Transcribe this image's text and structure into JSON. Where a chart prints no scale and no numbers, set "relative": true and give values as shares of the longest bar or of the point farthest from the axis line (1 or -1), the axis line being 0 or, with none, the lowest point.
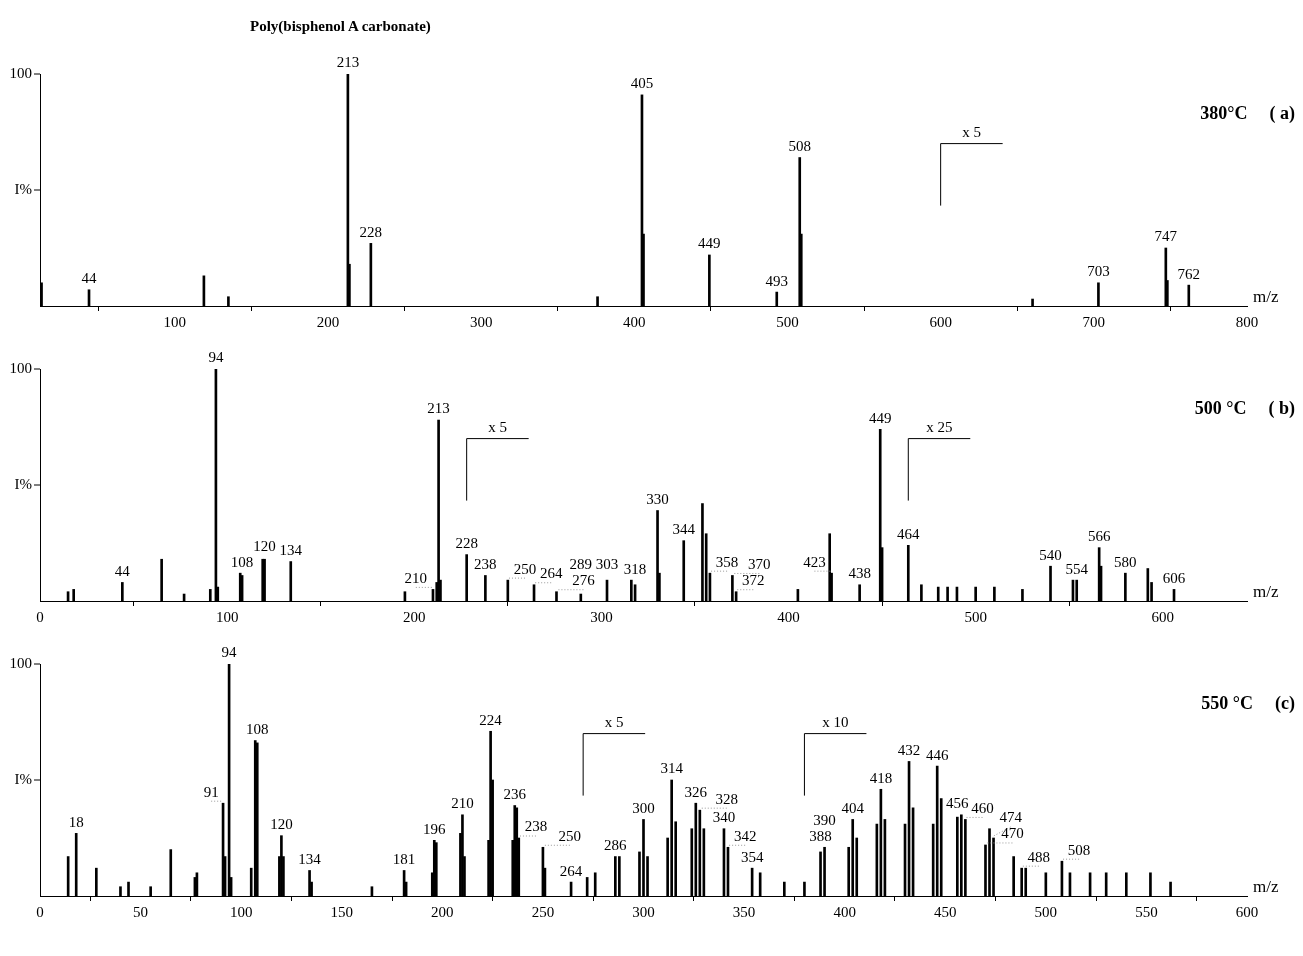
{
  "chart_data": [
    {
      "type": "bar",
      "title": "Poly(bisphenol A carbonate)",
      "xlabel": "m/z",
      "ylabel": "I%",
      "color": "#000000",
      "relative": true,
      "legend": false,
      "x": [
        13,
        44,
        119,
        135,
        213,
        214,
        228,
        376,
        405,
        406,
        449,
        493,
        508,
        509,
        660,
        703,
        747,
        748,
        762
      ],
      "values": [
        0.1,
        0.07,
        0.13,
        0.04,
        1,
        0.18,
        0.27,
        0.04,
        0.91,
        0.31,
        0.22,
        0.06,
        0.64,
        0.31,
        0.03,
        0.1,
        0.25,
        0.11,
        0.09
      ],
      "xlim": [
        12,
        800
      ],
      "xticks": [
        100,
        200,
        300,
        400,
        500,
        600,
        700,
        800
      ],
      "ref_lines": [
        {
          "axis": "x",
          "value": 600,
          "label": "x 5"
        }
      ],
      "annotations": [
        "100",
        "380°C",
        "( a)",
        {
          "text": "44",
          "x": 44,
          "y": 0.07
        },
        {
          "text": "213",
          "x": 213,
          "y": 1
        },
        {
          "text": "228",
          "x": 228,
          "y": 0.27
        },
        {
          "text": "405",
          "x": 405,
          "y": 0.91
        },
        {
          "text": "449",
          "x": 449,
          "y": 0.22
        },
        {
          "text": "493",
          "x": 493,
          "y": 0.06
        },
        {
          "text": "508",
          "x": 508,
          "y": 0.64
        },
        {
          "text": "703",
          "x": 703,
          "y": 0.1
        },
        {
          "text": "747",
          "x": 747,
          "y": 0.25
        },
        {
          "text": "762",
          "x": 762,
          "y": 0.09
        }
      ]
    },
    {
      "type": "bar",
      "xlabel": "m/z",
      "ylabel": "I%",
      "color": "#000000",
      "relative": true,
      "legend": false,
      "x": [
        15,
        18,
        44,
        65,
        77,
        91,
        94,
        95,
        107,
        108,
        119,
        120,
        134,
        195,
        210,
        212,
        213,
        214,
        228,
        238,
        250,
        264,
        276,
        289,
        303,
        316,
        318,
        330,
        331,
        344,
        354,
        356,
        358,
        370,
        372,
        405,
        422,
        423,
        438,
        449,
        450,
        464,
        471,
        480,
        485,
        490,
        500,
        510,
        525,
        540,
        552,
        554,
        566,
        567,
        580,
        592,
        594,
        606
      ],
      "values": [
        0.04,
        0.05,
        0.08,
        0.18,
        0.03,
        0.05,
        1,
        0.06,
        0.12,
        0.11,
        0.18,
        0.18,
        0.17,
        0.04,
        0.05,
        0.08,
        0.78,
        0.09,
        0.2,
        0.11,
        0.09,
        0.07,
        0.04,
        0.03,
        0.09,
        0.09,
        0.07,
        0.39,
        0.12,
        0.26,
        0.42,
        0.29,
        0.12,
        0.11,
        0.04,
        0.05,
        0.29,
        0.12,
        0.07,
        0.74,
        0.23,
        0.24,
        0.07,
        0.06,
        0.06,
        0.06,
        0.06,
        0.06,
        0.05,
        0.15,
        0.09,
        0.09,
        0.23,
        0.15,
        0.12,
        0.14,
        0.08,
        0.05
      ],
      "xlim": [
        0,
        645
      ],
      "xticks": [
        0,
        100,
        200,
        300,
        400,
        500,
        600
      ],
      "ref_lines": [
        {
          "axis": "x",
          "value": 228,
          "label": "x 5"
        },
        {
          "axis": "x",
          "value": 464,
          "label": "x 25"
        }
      ],
      "annotations": [
        "100",
        "500 °C",
        "( b)",
        {
          "text": "44",
          "x": 44,
          "y": 0.08
        },
        {
          "text": "94",
          "x": 94,
          "y": 1
        },
        {
          "text": "108",
          "x": 108,
          "y": 0.11
        },
        {
          "text": "120",
          "x": 120,
          "y": 0.18
        },
        {
          "text": "134",
          "x": 134,
          "y": 0.17
        },
        {
          "text": "210",
          "x": 210,
          "y": 0.05
        },
        {
          "text": "213",
          "x": 213,
          "y": 0.78
        },
        {
          "text": "228",
          "x": 228,
          "y": 0.2
        },
        {
          "text": "238",
          "x": 238,
          "y": 0.11
        },
        {
          "text": "250",
          "x": 250,
          "y": 0.09
        },
        {
          "text": "264",
          "x": 264,
          "y": 0.07
        },
        {
          "text": "276",
          "x": 276,
          "y": 0.04
        },
        {
          "text": "289",
          "x": 289,
          "y": 0.03
        },
        {
          "text": "303",
          "x": 303,
          "y": 0.09
        },
        {
          "text": "318",
          "x": 318,
          "y": 0.07
        },
        {
          "text": "330",
          "x": 330,
          "y": 0.39
        },
        {
          "text": "344",
          "x": 344,
          "y": 0.26
        },
        {
          "text": "358",
          "x": 358,
          "y": 0.12
        },
        {
          "text": "370",
          "x": 370,
          "y": 0.11
        },
        {
          "text": "372",
          "x": 372,
          "y": 0.04
        },
        {
          "text": "423",
          "x": 423,
          "y": 0.12
        },
        {
          "text": "438",
          "x": 438,
          "y": 0.07
        },
        {
          "text": "449",
          "x": 449,
          "y": 0.74
        },
        {
          "text": "464",
          "x": 464,
          "y": 0.24
        },
        {
          "text": "540",
          "x": 540,
          "y": 0.15
        },
        {
          "text": "554",
          "x": 554,
          "y": 0.09
        },
        {
          "text": "566",
          "x": 566,
          "y": 0.23
        },
        {
          "text": "580",
          "x": 580,
          "y": 0.12
        },
        {
          "text": "606",
          "x": 606,
          "y": 0.05
        }
      ]
    },
    {
      "type": "bar",
      "xlabel": "m/z",
      "ylabel": "I%",
      "color": "#000000",
      "relative": true,
      "legend": false,
      "x": [
        14,
        18,
        28,
        40,
        44,
        55,
        65,
        77,
        78,
        91,
        92,
        94,
        95,
        105,
        107,
        108,
        119,
        120,
        121,
        134,
        135,
        165,
        181,
        182,
        195,
        196,
        197,
        209,
        210,
        211,
        223,
        224,
        225,
        235,
        236,
        237,
        238,
        250,
        251,
        264,
        272,
        276,
        286,
        288,
        298,
        300,
        302,
        312,
        314,
        316,
        324,
        326,
        328,
        330,
        340,
        342,
        354,
        358,
        370,
        380,
        388,
        390,
        402,
        404,
        406,
        416,
        418,
        420,
        430,
        432,
        434,
        444,
        446,
        448,
        456,
        458,
        460,
        470,
        472,
        474,
        484,
        488,
        490,
        500,
        508,
        512,
        522,
        530,
        540,
        552,
        562
      ],
      "values": [
        0.17,
        0.27,
        0.12,
        0.04,
        0.06,
        0.04,
        0.2,
        0.08,
        0.1,
        0.4,
        0.17,
        1,
        0.08,
        0.12,
        0.67,
        0.66,
        0.17,
        0.26,
        0.17,
        0.11,
        0.06,
        0.04,
        0.11,
        0.06,
        0.1,
        0.24,
        0.23,
        0.27,
        0.35,
        0.17,
        0.24,
        0.71,
        0.5,
        0.24,
        0.39,
        0.38,
        0.25,
        0.21,
        0.12,
        0.06,
        0.08,
        0.1,
        0.17,
        0.17,
        0.19,
        0.33,
        0.17,
        0.25,
        0.5,
        0.32,
        0.29,
        0.4,
        0.37,
        0.29,
        0.29,
        0.21,
        0.12,
        0.1,
        0.06,
        0.06,
        0.19,
        0.21,
        0.21,
        0.33,
        0.25,
        0.31,
        0.46,
        0.33,
        0.31,
        0.58,
        0.38,
        0.31,
        0.56,
        0.42,
        0.34,
        0.35,
        0.33,
        0.22,
        0.29,
        0.25,
        0.17,
        0.12,
        0.12,
        0.1,
        0.15,
        0.1,
        0.1,
        0.1,
        0.1,
        0.1,
        0.06
      ],
      "xlim": [
        0,
        600
      ],
      "xticks": [
        0,
        50,
        100,
        150,
        200,
        250,
        300,
        350,
        400,
        450,
        500,
        550,
        600
      ],
      "ref_lines": [
        {
          "axis": "x",
          "value": 270,
          "label": "x 5"
        },
        {
          "axis": "x",
          "value": 380,
          "label": "x 10"
        }
      ],
      "annotations": [
        "100",
        "550 °C",
        "(c)",
        {
          "text": "18",
          "x": 18,
          "y": 0.27
        },
        {
          "text": "91",
          "x": 91,
          "y": 0.4
        },
        {
          "text": "94",
          "x": 94,
          "y": 1
        },
        {
          "text": "108",
          "x": 108,
          "y": 0.66
        },
        {
          "text": "120",
          "x": 120,
          "y": 0.26
        },
        {
          "text": "134",
          "x": 134,
          "y": 0.11
        },
        {
          "text": "181",
          "x": 181,
          "y": 0.11
        },
        {
          "text": "196",
          "x": 196,
          "y": 0.24
        },
        {
          "text": "210",
          "x": 210,
          "y": 0.35
        },
        {
          "text": "224",
          "x": 224,
          "y": 0.71
        },
        {
          "text": "236",
          "x": 236,
          "y": 0.39
        },
        {
          "text": "238",
          "x": 238,
          "y": 0.25
        },
        {
          "text": "250",
          "x": 250,
          "y": 0.21
        },
        {
          "text": "264",
          "x": 264,
          "y": 0.06
        },
        {
          "text": "286",
          "x": 286,
          "y": 0.17
        },
        {
          "text": "300",
          "x": 300,
          "y": 0.33
        },
        {
          "text": "314",
          "x": 314,
          "y": 0.5
        },
        {
          "text": "326",
          "x": 326,
          "y": 0.4
        },
        {
          "text": "328",
          "x": 328,
          "y": 0.37
        },
        {
          "text": "340",
          "x": 340,
          "y": 0.29
        },
        {
          "text": "342",
          "x": 342,
          "y": 0.21
        },
        {
          "text": "354",
          "x": 354,
          "y": 0.12
        },
        {
          "text": "388",
          "x": 388,
          "y": 0.19
        },
        {
          "text": "390",
          "x": 390,
          "y": 0.21
        },
        {
          "text": "404",
          "x": 404,
          "y": 0.33
        },
        {
          "text": "418",
          "x": 418,
          "y": 0.46
        },
        {
          "text": "432",
          "x": 432,
          "y": 0.58
        },
        {
          "text": "446",
          "x": 446,
          "y": 0.56
        },
        {
          "text": "456",
          "x": 456,
          "y": 0.34
        },
        {
          "text": "460",
          "x": 460,
          "y": 0.33
        },
        {
          "text": "470",
          "x": 470,
          "y": 0.22
        },
        {
          "text": "474",
          "x": 474,
          "y": 0.25
        },
        {
          "text": "488",
          "x": 488,
          "y": 0.12
        },
        {
          "text": "508",
          "x": 508,
          "y": 0.15
        }
      ]
    }
  ]
}
